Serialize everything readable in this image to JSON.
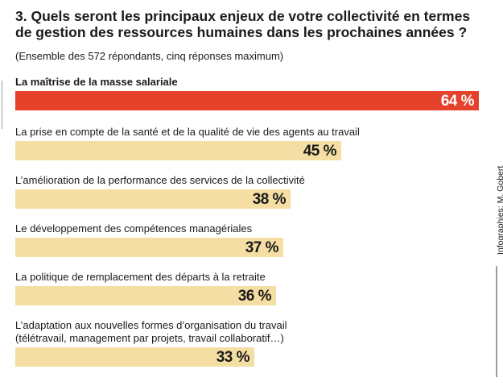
{
  "title": "3. Quels seront les principaux enjeux de votre collectivité en termes de gestion des ressources humaines dans les prochaines années ?",
  "subtitle": "(Ensemble des 572 répondants, cinq réponses maximum)",
  "credit": "Infographies: M. Gobert",
  "colors": {
    "highlight": "#e5412b",
    "bar": "#f5dea3",
    "text": "#1a1a1a"
  },
  "chart_data": {
    "type": "bar",
    "orientation": "horizontal",
    "title": "3. Quels seront les principaux enjeux de votre collectivité en termes de gestion des ressources humaines dans les prochaines années ?",
    "subtitle": "(Ensemble des 572 répondants, cinq réponses maximum)",
    "xlim": [
      0,
      100
    ],
    "grid": false,
    "categories": [
      "La maîtrise de la masse salariale",
      "La prise en compte de la santé et de la qualité de vie des agents au travail",
      "L’amélioration de la performance des services de la collectivité",
      "Le développement des compétences managériales",
      "La politique de remplacement des départs à la retraite",
      "L’adaptation aux nouvelles formes d’organisation du travail\n(télétravail, management par projets, travail collaboratif…)"
    ],
    "values": [
      64,
      45,
      38,
      37,
      36,
      33
    ],
    "value_labels": [
      "64 %",
      "45 %",
      "38 %",
      "37 %",
      "36 %",
      "33 %"
    ]
  }
}
